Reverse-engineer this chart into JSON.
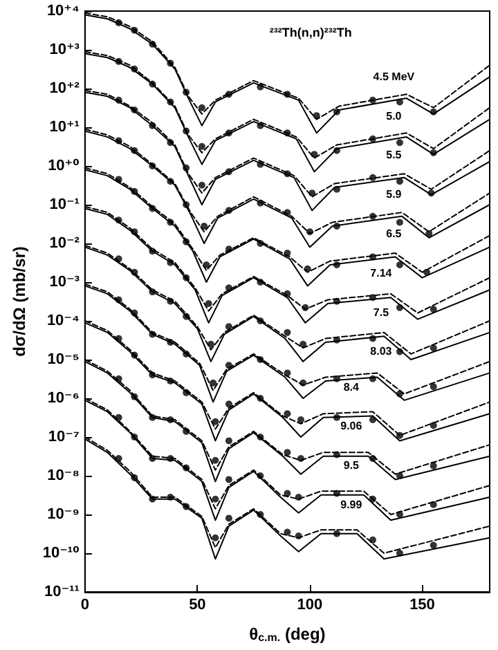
{
  "chart_data": {
    "type": "line",
    "xlabel": "θ$_{c.m.}$ (deg)",
    "ylabel": "dσ/dΩ (mb/sr)",
    "log": "y",
    "grid": false,
    "xlim": [
      0,
      180
    ],
    "xticks": [
      0,
      50,
      100,
      150
    ],
    "ylim": [
      1e-11,
      10000.0
    ],
    "yticks": [
      {
        "value": 10000.0,
        "label": "10⁺⁴"
      },
      {
        "value": 1000.0,
        "label": "10⁺³"
      },
      {
        "value": 100.0,
        "label": "10⁺²"
      },
      {
        "value": 10.0,
        "label": "10⁺¹"
      },
      {
        "value": 1,
        "label": "10⁺⁰"
      },
      {
        "value": 0.1,
        "label": "10⁻¹"
      },
      {
        "value": 0.01,
        "label": "10⁻²"
      },
      {
        "value": 0.001,
        "label": "10⁻³"
      },
      {
        "value": 0.0001,
        "label": "10⁻⁴"
      },
      {
        "value": 1e-05,
        "label": "10⁻⁵"
      },
      {
        "value": 1e-06,
        "label": "10⁻⁶"
      },
      {
        "value": 1e-07,
        "label": "10⁻⁷"
      },
      {
        "value": 1e-08,
        "label": "10⁻⁸"
      },
      {
        "value": 1e-09,
        "label": "10⁻⁹"
      },
      {
        "value": 1e-10,
        "label": "10⁻¹⁰"
      },
      {
        "value": 1e-11,
        "label": "10⁻¹¹"
      }
    ],
    "annotations": [
      "²³²Th(n,n)²³²Th",
      "4.5 MeV",
      "5.0",
      "5.5",
      "5.9",
      "6.5",
      "7.14",
      "7.5",
      "8.03",
      "8.4",
      "9.06",
      "9.5",
      "9.99"
    ],
    "series": [
      {
        "line_style": "solid",
        "marker": "none",
        "color": "#000000",
        "x": [
          0,
          10,
          20,
          30,
          40,
          46,
          52,
          58,
          75,
          95,
          103,
          113,
          143,
          155,
          180
        ],
        "values": [
          8000.0,
          6300.0,
          3500.0,
          1400.0,
          320.0,
          56.0,
          11.0,
          45.0,
          140.0,
          50.0,
          7.1,
          28.0,
          56.0,
          22.0,
          200.0
        ]
      },
      {
        "type": "line",
        "line_style": "dashed",
        "marker": "none",
        "color": "#000000",
        "x": [
          0,
          10,
          20,
          30,
          40,
          46,
          52,
          58,
          75,
          95,
          103,
          113,
          143,
          155,
          180
        ],
        "values": [
          8900.0,
          7100.0,
          4000.0,
          1600.0,
          350.0,
          63.0,
          22.0,
          50.0,
          160.0,
          56.0,
          16.0,
          35.0,
          71.0,
          32.0,
          400.0
        ]
      },
      {
        "type": "scatter",
        "marker": "circle",
        "color": "#000000",
        "x": [
          15,
          22,
          30,
          38,
          45,
          52,
          64,
          78,
          90,
          103,
          112,
          128,
          140,
          155
        ],
        "values": [
          5000.0,
          3200.0,
          1400.0,
          450.0,
          80.0,
          32.0,
          71.0,
          110.0,
          71.0,
          20.0,
          25.0,
          50.0,
          45.0,
          25.0
        ]
      },
      {
        "type": "line",
        "line_style": "solid",
        "marker": "none",
        "color": "#000000",
        "x": [
          0,
          10,
          20,
          30,
          40,
          46,
          52,
          58,
          75,
          94,
          102,
          112,
          143,
          155,
          180
        ],
        "values": [
          800.0,
          630.0,
          350.0,
          130.0,
          32.0,
          5.6,
          1.1,
          4.5,
          14.0,
          5,
          0.71,
          2.8,
          5.6,
          2,
          16.0
        ]
      },
      {
        "type": "line",
        "line_style": "dashed",
        "marker": "none",
        "color": "#000000",
        "x": [
          0,
          10,
          20,
          30,
          40,
          46,
          52,
          58,
          75,
          94,
          102,
          112,
          143,
          155,
          180
        ],
        "values": [
          890.0,
          710.0,
          400.0,
          140.0,
          35.0,
          6.3,
          2.2,
          5,
          16.0,
          5.6,
          1.6,
          3.5,
          7.1,
          2.8,
          32.0
        ]
      },
      {
        "type": "scatter",
        "marker": "circle",
        "color": "#000000",
        "x": [
          15,
          22,
          30,
          38,
          45,
          52,
          64,
          78,
          90,
          102,
          112,
          128,
          140,
          155
        ],
        "values": [
          500.0,
          320.0,
          130.0,
          45.0,
          8,
          3.2,
          7.1,
          11.0,
          7.1,
          2,
          2.5,
          5,
          4,
          2.2
        ]
      },
      {
        "type": "line",
        "line_style": "solid",
        "marker": "none",
        "color": "#000000",
        "x": [
          0,
          10,
          20,
          30,
          40,
          46,
          52,
          58,
          75,
          93,
          101,
          111,
          142,
          154,
          180
        ],
        "values": [
          80.0,
          63.0,
          32.0,
          11.0,
          3.2,
          0.56,
          0.1,
          0.45,
          1.4,
          0.5,
          0.071,
          0.28,
          0.5,
          0.18,
          1.3
        ]
      },
      {
        "type": "line",
        "line_style": "dashed",
        "marker": "none",
        "color": "#000000",
        "x": [
          0,
          10,
          20,
          30,
          40,
          46,
          52,
          58,
          75,
          93,
          101,
          111,
          142,
          154,
          180
        ],
        "values": [
          89.0,
          71.0,
          35.0,
          13.0,
          3.5,
          0.63,
          0.2,
          0.5,
          1.6,
          0.56,
          0.16,
          0.35,
          0.63,
          0.25,
          2.5
        ]
      },
      {
        "type": "scatter",
        "marker": "circle",
        "color": "#000000",
        "x": [
          15,
          22,
          30,
          38,
          45,
          52,
          64,
          78,
          90,
          101,
          112,
          128,
          140,
          154
        ],
        "values": [
          50.0,
          28.0,
          11.0,
          4,
          0.89,
          0.32,
          0.71,
          1.1,
          0.63,
          0.2,
          0.25,
          0.5,
          0.4,
          0.2
        ]
      },
      {
        "type": "line",
        "line_style": "solid",
        "marker": "none",
        "color": "#000000",
        "x": [
          0,
          10,
          20,
          30,
          40,
          47,
          53,
          59,
          75,
          92,
          100,
          110,
          141,
          153,
          180
        ],
        "values": [
          8,
          5.6,
          2.8,
          1,
          0.32,
          0.056,
          0.01,
          0.045,
          0.14,
          0.045,
          0.008,
          0.028,
          0.05,
          0.014,
          0.1
        ]
      },
      {
        "type": "line",
        "line_style": "dashed",
        "marker": "none",
        "color": "#000000",
        "x": [
          0,
          10,
          20,
          30,
          40,
          47,
          53,
          59,
          75,
          92,
          100,
          110,
          141,
          153,
          180
        ],
        "values": [
          8.9,
          6.3,
          3.2,
          1.1,
          0.35,
          0.063,
          0.02,
          0.05,
          0.16,
          0.05,
          0.018,
          0.035,
          0.063,
          0.02,
          0.2
        ]
      },
      {
        "type": "scatter",
        "marker": "circle",
        "color": "#000000",
        "x": [
          15,
          22,
          30,
          38,
          45,
          53,
          64,
          78,
          90,
          100,
          112,
          128,
          140,
          153
        ],
        "values": [
          4.5,
          2.5,
          1,
          0.4,
          0.1,
          0.028,
          0.071,
          0.11,
          0.063,
          0.02,
          0.028,
          0.05,
          0.035,
          0.018
        ]
      },
      {
        "type": "line",
        "line_style": "solid",
        "marker": "none",
        "color": "#000000",
        "x": [
          0,
          10,
          20,
          30,
          40,
          48,
          54,
          60,
          75,
          91,
          99,
          109,
          138,
          150,
          180
        ],
        "values": [
          0.8,
          0.56,
          0.25,
          0.08,
          0.028,
          0.0063,
          0.001,
          0.0045,
          0.013,
          0.004,
          0.0008,
          0.0028,
          0.0045,
          0.0013,
          0.008
        ]
      },
      {
        "type": "line",
        "line_style": "dashed",
        "marker": "none",
        "color": "#000000",
        "x": [
          0,
          10,
          20,
          30,
          40,
          48,
          54,
          60,
          75,
          91,
          99,
          109,
          138,
          150,
          180
        ],
        "values": [
          0.89,
          0.63,
          0.28,
          0.089,
          0.032,
          0.0071,
          0.002,
          0.005,
          0.014,
          0.0045,
          0.0018,
          0.0035,
          0.0056,
          0.0018,
          0.016
        ]
      },
      {
        "type": "scatter",
        "marker": "circle",
        "color": "#000000",
        "x": [
          15,
          22,
          30,
          38,
          45,
          54,
          64,
          78,
          90,
          99,
          112,
          128,
          140,
          152
        ],
        "values": [
          0.45,
          0.22,
          0.08,
          0.035,
          0.011,
          0.0028,
          0.0071,
          0.01,
          0.0056,
          0.0022,
          0.0028,
          0.0045,
          0.0028,
          0.0018
        ]
      },
      {
        "type": "line",
        "line_style": "solid",
        "marker": "none",
        "color": "#000000",
        "x": [
          0,
          10,
          20,
          30,
          40,
          49,
          55,
          61,
          75,
          90,
          98,
          108,
          136,
          148,
          180
        ],
        "values": [
          0.08,
          0.056,
          0.022,
          0.0063,
          0.0028,
          0.00063,
          8.9e-05,
          0.00045,
          0.0013,
          0.0004,
          8.9e-05,
          0.00028,
          0.0004,
          0.00011,
          0.00063
        ]
      },
      {
        "type": "line",
        "line_style": "dashed",
        "marker": "none",
        "color": "#000000",
        "x": [
          0,
          10,
          20,
          30,
          40,
          49,
          55,
          61,
          75,
          90,
          98,
          108,
          136,
          148,
          180
        ],
        "values": [
          0.089,
          0.063,
          0.025,
          0.0071,
          0.0032,
          0.00071,
          0.00018,
          0.0005,
          0.0014,
          0.00045,
          0.0002,
          0.00035,
          0.0005,
          0.00016,
          0.0013
        ]
      },
      {
        "type": "scatter",
        "marker": "circle",
        "color": "#000000",
        "x": [
          15,
          22,
          30,
          38,
          45,
          55,
          64,
          78,
          90,
          98,
          112,
          128,
          140,
          155
        ],
        "values": [
          0.04,
          0.02,
          0.0063,
          0.0032,
          0.0013,
          0.00028,
          0.00071,
          0.001,
          0.0005,
          0.00022,
          0.00032,
          0.0004,
          0.00022,
          0.0002
        ]
      },
      {
        "type": "line",
        "line_style": "solid",
        "marker": "none",
        "color": "#000000",
        "x": [
          0,
          10,
          20,
          30,
          40,
          50,
          56,
          62,
          75,
          89,
          97,
          107,
          133,
          145,
          180
        ],
        "values": [
          0.008,
          0.005,
          0.002,
          0.00056,
          0.00028,
          6.3e-05,
          8.9e-06,
          4.5e-05,
          0.00013,
          3.5e-05,
          8.9e-06,
          2.8e-05,
          4e-05,
          1e-05,
          5e-05
        ]
      },
      {
        "type": "line",
        "line_style": "dashed",
        "marker": "none",
        "color": "#000000",
        "x": [
          0,
          10,
          20,
          30,
          40,
          50,
          56,
          62,
          75,
          89,
          97,
          107,
          133,
          145,
          180
        ],
        "values": [
          0.0089,
          0.0056,
          0.0022,
          0.00063,
          0.00032,
          7.1e-05,
          1.8e-05,
          5e-05,
          0.00014,
          4e-05,
          2e-05,
          3.5e-05,
          5e-05,
          1.4e-05,
          0.0001
        ]
      },
      {
        "type": "scatter",
        "marker": "circle",
        "color": "#000000",
        "x": [
          15,
          22,
          30,
          38,
          45,
          56,
          64,
          78,
          90,
          97,
          112,
          128,
          140,
          155
        ],
        "values": [
          0.004,
          0.0018,
          0.00056,
          0.00032,
          0.00013,
          2.5e-05,
          7.1e-05,
          0.0001,
          5e-05,
          2.5e-05,
          3.2e-05,
          3.5e-05,
          1.6e-05,
          2e-05
        ]
      },
      {
        "type": "line",
        "line_style": "solid",
        "marker": "none",
        "color": "#000000",
        "x": [
          0,
          10,
          20,
          30,
          40,
          51,
          57,
          63,
          75,
          89,
          97,
          107,
          130,
          142,
          180
        ],
        "values": [
          0.0008,
          0.0005,
          0.00018,
          4.5e-05,
          2.5e-05,
          7.1e-06,
          8e-07,
          5e-06,
          1.3e-05,
          3.5e-06,
          1e-06,
          2.8e-06,
          3.5e-06,
          8.9e-07,
          4.5e-06
        ]
      },
      {
        "type": "line",
        "line_style": "dashed",
        "marker": "none",
        "color": "#000000",
        "x": [
          0,
          10,
          20,
          30,
          40,
          51,
          57,
          63,
          75,
          89,
          97,
          107,
          130,
          142,
          180
        ],
        "values": [
          0.00089,
          0.00056,
          0.0002,
          5e-05,
          2.8e-05,
          8e-06,
          1.6e-06,
          5.6e-06,
          1.4e-05,
          4e-06,
          2.2e-06,
          3.5e-06,
          4.5e-06,
          1.3e-06,
          8.9e-06
        ]
      },
      {
        "type": "scatter",
        "marker": "circle",
        "color": "#000000",
        "x": [
          15,
          22,
          30,
          38,
          45,
          57,
          64,
          78,
          90,
          97,
          112,
          128,
          140,
          155
        ],
        "values": [
          0.00035,
          0.00016,
          4.5e-05,
          2.8e-05,
          1.4e-05,
          2.5e-06,
          7.1e-06,
          1e-05,
          4.5e-06,
          2.5e-06,
          3.2e-06,
          3.2e-06,
          1.3e-06,
          2e-06
        ]
      },
      {
        "type": "line",
        "line_style": "solid",
        "marker": "none",
        "color": "#000000",
        "x": [
          0,
          10,
          20,
          30,
          40,
          52,
          58,
          64,
          75,
          88,
          96,
          106,
          128,
          140,
          180
        ],
        "values": [
          8.9e-05,
          5e-05,
          1.6e-05,
          4e-06,
          2.5e-06,
          7.1e-07,
          8e-08,
          5e-07,
          1.3e-06,
          3.2e-07,
          1e-07,
          3.2e-07,
          3.5e-07,
          8e-08,
          4e-07
        ]
      },
      {
        "type": "line",
        "line_style": "dashed",
        "marker": "none",
        "color": "#000000",
        "x": [
          0,
          10,
          20,
          30,
          40,
          52,
          58,
          64,
          75,
          88,
          96,
          106,
          128,
          140,
          180
        ],
        "values": [
          0.0001,
          5.6e-05,
          1.8e-05,
          4.5e-06,
          2.8e-06,
          8e-07,
          1.6e-07,
          5.6e-07,
          1.4e-06,
          3.5e-07,
          2.2e-07,
          4e-07,
          4.5e-07,
          1.1e-07,
          8e-07
        ]
      },
      {
        "type": "scatter",
        "marker": "circle",
        "color": "#000000",
        "x": [
          15,
          22,
          30,
          38,
          45,
          58,
          64,
          78,
          90,
          96,
          112,
          128,
          140,
          155
        ],
        "values": [
          3.5e-05,
          1.3e-05,
          4e-06,
          2.8e-06,
          1.4e-06,
          2.5e-07,
          7.1e-07,
          1e-06,
          4e-07,
          2.8e-07,
          3.2e-07,
          2.8e-07,
          1.1e-07,
          2e-07
        ]
      },
      {
        "type": "line",
        "line_style": "solid",
        "marker": "none",
        "color": "#000000",
        "x": [
          0,
          10,
          20,
          30,
          40,
          52,
          58,
          64,
          75,
          88,
          96,
          106,
          126,
          138,
          180
        ],
        "values": [
          8.9e-06,
          4.5e-06,
          1.4e-06,
          3.2e-07,
          2.5e-07,
          7.1e-08,
          7.1e-09,
          5e-08,
          1.3e-07,
          3.2e-08,
          1.1e-08,
          3.2e-08,
          3.2e-08,
          8e-09,
          3.2e-08
        ]
      },
      {
        "type": "line",
        "line_style": "dashed",
        "marker": "none",
        "color": "#000000",
        "x": [
          0,
          10,
          20,
          30,
          40,
          52,
          58,
          64,
          75,
          88,
          96,
          106,
          126,
          138,
          180
        ],
        "values": [
          1e-05,
          5e-06,
          1.6e-06,
          3.5e-07,
          2.8e-07,
          8e-08,
          1.4e-08,
          5.6e-08,
          1.4e-07,
          3.5e-08,
          2.5e-08,
          4e-08,
          4e-08,
          1.1e-08,
          6.3e-08
        ]
      },
      {
        "type": "scatter",
        "marker": "circle",
        "color": "#000000",
        "x": [
          15,
          22,
          30,
          38,
          45,
          58,
          64,
          78,
          90,
          96,
          112,
          128,
          140,
          155
        ],
        "values": [
          3.2e-06,
          1.1e-06,
          3.2e-07,
          2.8e-07,
          1.4e-07,
          2.5e-08,
          8e-08,
          1e-07,
          4e-08,
          2.8e-08,
          3.5e-08,
          2.8e-08,
          1e-08,
          1.8e-08
        ]
      },
      {
        "type": "line",
        "line_style": "solid",
        "marker": "none",
        "color": "#000000",
        "x": [
          0,
          10,
          20,
          30,
          40,
          52,
          58,
          64,
          75,
          87,
          95,
          105,
          124,
          136,
          180
        ],
        "values": [
          8.9e-07,
          4.5e-07,
          1.3e-07,
          2.8e-08,
          2.5e-08,
          7.1e-09,
          7.1e-10,
          5e-09,
          1.3e-08,
          2.8e-09,
          1.1e-09,
          3.2e-09,
          3.2e-09,
          7.1e-10,
          2.8e-09
        ]
      },
      {
        "type": "line",
        "line_style": "dashed",
        "marker": "none",
        "color": "#000000",
        "x": [
          0,
          10,
          20,
          30,
          40,
          52,
          58,
          64,
          75,
          87,
          95,
          105,
          124,
          136,
          180
        ],
        "values": [
          1e-06,
          5e-07,
          1.4e-07,
          3.2e-08,
          2.8e-08,
          8e-09,
          1.4e-09,
          5.6e-09,
          1.4e-08,
          3.2e-09,
          2.5e-09,
          4e-09,
          4e-09,
          1e-09,
          5.6e-09
        ]
      },
      {
        "type": "scatter",
        "marker": "circle",
        "color": "#000000",
        "x": [
          15,
          22,
          30,
          38,
          45,
          58,
          64,
          78,
          90,
          95,
          112,
          128,
          140,
          155
        ],
        "values": [
          3.2e-07,
          1e-07,
          2.8e-08,
          2.8e-08,
          1.6e-08,
          2.5e-09,
          8e-09,
          1e-08,
          3.5e-09,
          2.8e-09,
          3.5e-09,
          2.5e-09,
          1e-09,
          1.8e-09
        ]
      },
      {
        "type": "line",
        "line_style": "solid",
        "marker": "none",
        "color": "#000000",
        "x": [
          0,
          10,
          20,
          30,
          40,
          52,
          58,
          64,
          75,
          87,
          95,
          105,
          121,
          133,
          180
        ],
        "values": [
          8.9e-08,
          4e-08,
          1.1e-08,
          2.5e-09,
          2.5e-09,
          8e-10,
          7.1e-11,
          5e-10,
          1.3e-09,
          2.8e-10,
          1.1e-10,
          3.2e-10,
          3.2e-10,
          7.1e-11,
          2.5e-10
        ]
      },
      {
        "type": "line",
        "line_style": "dashed",
        "marker": "none",
        "color": "#000000",
        "x": [
          0,
          10,
          20,
          30,
          40,
          52,
          58,
          64,
          75,
          87,
          95,
          105,
          121,
          133,
          180
        ],
        "values": [
          1e-07,
          4.5e-08,
          1.3e-08,
          2.8e-09,
          2.8e-09,
          8.9e-10,
          1.4e-10,
          5.6e-10,
          1.4e-09,
          3.2e-10,
          2.5e-10,
          4e-10,
          4e-10,
          1e-10,
          5e-10
        ]
      },
      {
        "type": "scatter",
        "marker": "circle",
        "color": "#000000",
        "x": [
          15,
          22,
          30,
          38,
          45,
          58,
          64,
          78,
          90,
          95,
          112,
          128,
          140,
          155
        ],
        "values": [
          2.8e-08,
          8.9e-09,
          2.5e-09,
          2.8e-09,
          1.6e-09,
          2.5e-10,
          8e-10,
          1e-09,
          3.5e-10,
          2.8e-10,
          3.2e-10,
          2.2e-10,
          1e-10,
          1.6e-10
        ]
      }
    ]
  }
}
